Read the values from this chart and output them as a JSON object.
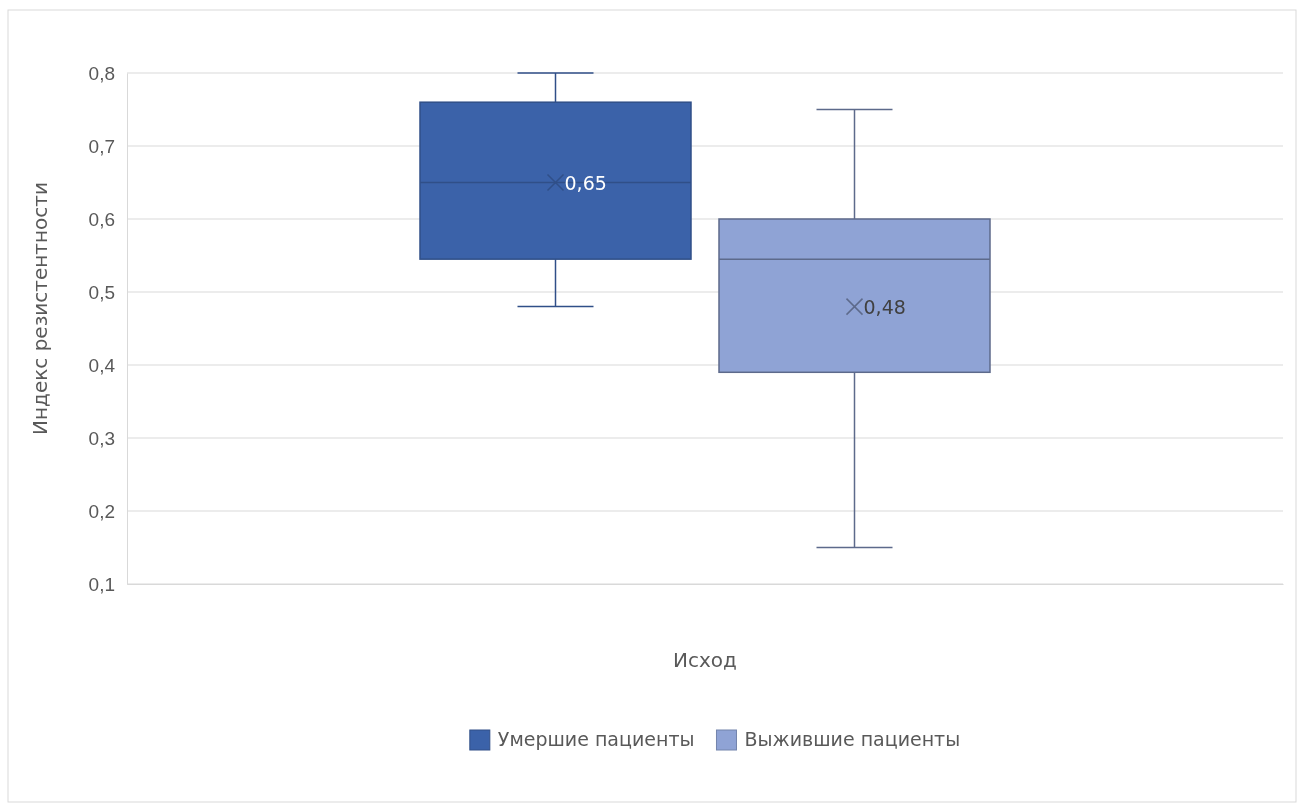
{
  "chart_data": {
    "type": "box",
    "xlabel": "Исход",
    "ylabel": "Индекс резистентности",
    "categories": [
      null
    ],
    "series": [
      {
        "name": "Умершие пациенты",
        "color": "#3b62a9",
        "boxes": [
          {
            "low": 0.48,
            "q1": 0.545,
            "median": 0.65,
            "q3": 0.76,
            "high": 0.8,
            "mean": 0.65
          }
        ],
        "value_labels": [
          "0,65"
        ]
      },
      {
        "name": "Выжившие пациенты",
        "color": "#8fa3d5",
        "boxes": [
          {
            "low": 0.15,
            "q1": 0.39,
            "median": 0.545,
            "q3": 0.6,
            "high": 0.75,
            "mean": 0.48
          }
        ],
        "value_labels": [
          "0,48"
        ]
      }
    ],
    "ylim": [
      0.1,
      0.8
    ],
    "yticks": [
      {
        "value": 0.1,
        "label": "0,1"
      },
      {
        "value": 0.2,
        "label": "0,2"
      },
      {
        "value": 0.3,
        "label": "0,3"
      },
      {
        "value": 0.4,
        "label": "0,4"
      },
      {
        "value": 0.5,
        "label": "0,5"
      },
      {
        "value": 0.6,
        "label": "0,6"
      },
      {
        "value": 0.7,
        "label": "0,7"
      },
      {
        "value": 0.8,
        "label": "0,8"
      }
    ],
    "grid": "y",
    "legend": "bottom"
  }
}
